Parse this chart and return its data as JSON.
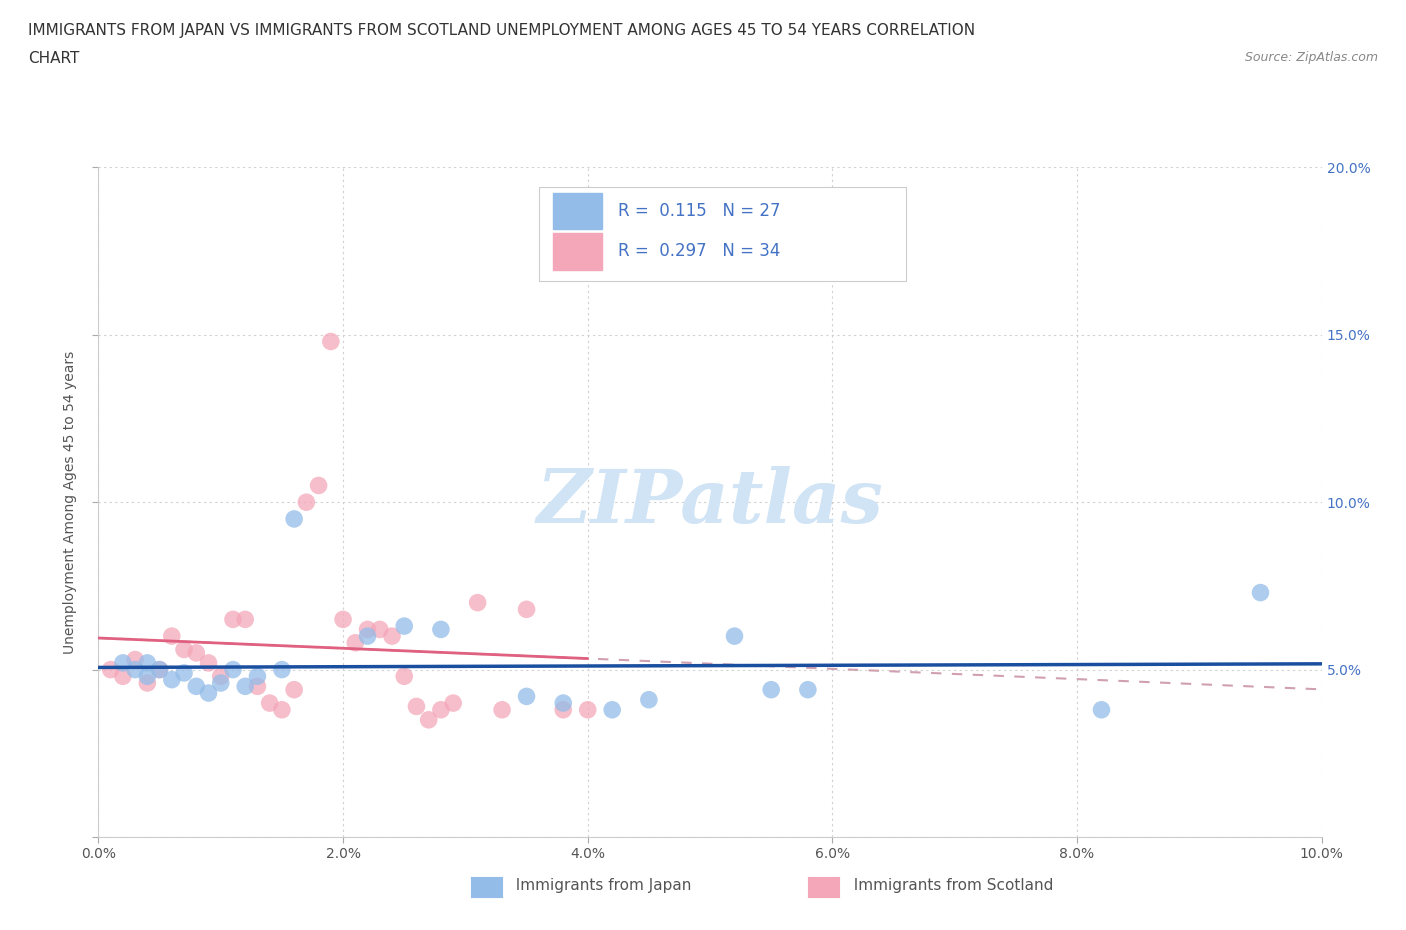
{
  "title_line1": "IMMIGRANTS FROM JAPAN VS IMMIGRANTS FROM SCOTLAND UNEMPLOYMENT AMONG AGES 45 TO 54 YEARS CORRELATION",
  "title_line2": "CHART",
  "source_text": "Source: ZipAtlas.com",
  "ylabel": "Unemployment Among Ages 45 to 54 years",
  "xlim": [
    0.0,
    0.1
  ],
  "ylim": [
    0.0,
    0.2
  ],
  "xticks": [
    0.0,
    0.02,
    0.04,
    0.06,
    0.08,
    0.1
  ],
  "yticks": [
    0.0,
    0.05,
    0.1,
    0.15,
    0.2
  ],
  "xticklabels": [
    "0.0%",
    "2.0%",
    "4.0%",
    "6.0%",
    "8.0%",
    "10.0%"
  ],
  "yticklabels_right": [
    "",
    "5.0%",
    "10.0%",
    "15.0%",
    "20.0%"
  ],
  "japan_R": 0.115,
  "japan_N": 27,
  "scotland_R": 0.297,
  "scotland_N": 34,
  "japan_color": "#93bce8",
  "scotland_color": "#f4a7b9",
  "japan_line_color": "#1a4fa0",
  "scotland_trendline_color": "#e06080",
  "watermark_color": "#d0e4f5",
  "legend_japan": "Immigrants from Japan",
  "legend_scotland": "Immigrants from Scotland",
  "japan_points_x": [
    0.002,
    0.003,
    0.004,
    0.004,
    0.005,
    0.006,
    0.007,
    0.008,
    0.009,
    0.01,
    0.011,
    0.012,
    0.013,
    0.015,
    0.016,
    0.022,
    0.025,
    0.028,
    0.035,
    0.038,
    0.042,
    0.045,
    0.052,
    0.055,
    0.058,
    0.082,
    0.095
  ],
  "japan_points_y": [
    0.052,
    0.05,
    0.048,
    0.052,
    0.05,
    0.047,
    0.049,
    0.045,
    0.043,
    0.046,
    0.05,
    0.045,
    0.048,
    0.05,
    0.095,
    0.06,
    0.063,
    0.062,
    0.042,
    0.04,
    0.038,
    0.041,
    0.06,
    0.044,
    0.044,
    0.038,
    0.073
  ],
  "scotland_points_x": [
    0.001,
    0.002,
    0.003,
    0.004,
    0.005,
    0.006,
    0.007,
    0.008,
    0.009,
    0.01,
    0.011,
    0.012,
    0.013,
    0.014,
    0.015,
    0.016,
    0.017,
    0.018,
    0.019,
    0.02,
    0.021,
    0.022,
    0.023,
    0.024,
    0.025,
    0.026,
    0.027,
    0.028,
    0.029,
    0.031,
    0.033,
    0.035,
    0.038,
    0.04
  ],
  "scotland_points_y": [
    0.05,
    0.048,
    0.053,
    0.046,
    0.05,
    0.06,
    0.056,
    0.055,
    0.052,
    0.048,
    0.065,
    0.065,
    0.045,
    0.04,
    0.038,
    0.044,
    0.1,
    0.105,
    0.148,
    0.065,
    0.058,
    0.062,
    0.062,
    0.06,
    0.048,
    0.039,
    0.035,
    0.038,
    0.04,
    0.07,
    0.038,
    0.068,
    0.038,
    0.038
  ],
  "background_color": "#ffffff",
  "grid_color": "#d0d0d0"
}
